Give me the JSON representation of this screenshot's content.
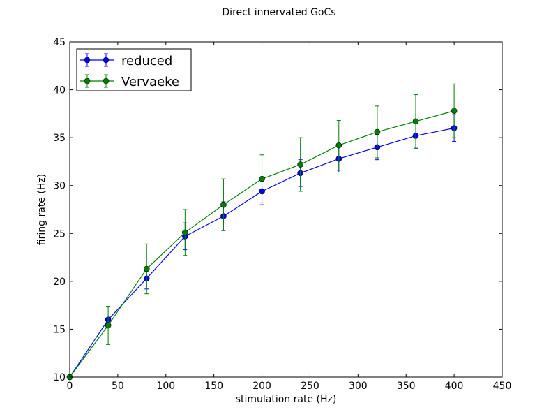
{
  "chart_data": {
    "type": "line",
    "title": "Direct innervated GoCs",
    "xlabel": "stimulation rate (Hz)",
    "ylabel": "firing rate (Hz)",
    "xlim": [
      0,
      450
    ],
    "ylim": [
      10,
      45
    ],
    "xticks": [
      0,
      50,
      100,
      150,
      200,
      250,
      300,
      350,
      400,
      450
    ],
    "yticks": [
      10,
      15,
      20,
      25,
      30,
      35,
      40,
      45
    ],
    "grid": false,
    "legend_position": "upper-left",
    "x": [
      0,
      40,
      80,
      120,
      160,
      200,
      240,
      280,
      320,
      360,
      400
    ],
    "series": [
      {
        "name": "reduced",
        "color": "#0000ff",
        "marker": "circle",
        "values": [
          10.0,
          16.0,
          20.3,
          24.7,
          26.8,
          29.4,
          31.3,
          32.8,
          34.0,
          35.2,
          36.0
        ],
        "errors": [
          0.0,
          0.0,
          1.1,
          1.4,
          1.5,
          1.4,
          1.4,
          1.4,
          1.3,
          1.3,
          1.4
        ]
      },
      {
        "name": "Vervaeke",
        "color": "#008000",
        "marker": "circle",
        "values": [
          10.0,
          15.4,
          21.3,
          25.1,
          28.0,
          30.7,
          32.2,
          34.2,
          35.6,
          36.7,
          37.8
        ],
        "errors": [
          0.0,
          2.0,
          2.6,
          2.4,
          2.7,
          2.5,
          2.8,
          2.6,
          2.7,
          2.8,
          2.8
        ]
      }
    ]
  }
}
